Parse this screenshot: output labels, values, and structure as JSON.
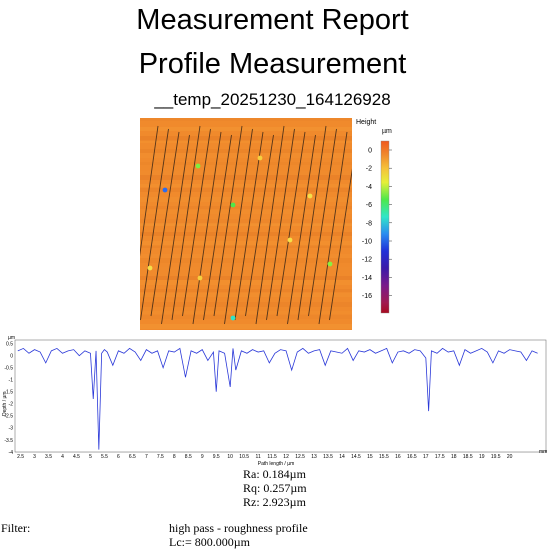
{
  "report": {
    "title": "Measurement Report",
    "subtitle": "Profile Measurement",
    "file_name": "__temp_20251230_164126928"
  },
  "height_map": {
    "colorbar_title": "Height",
    "colorbar_unit": "µm",
    "colorbar_ticks": [
      "0",
      "-2",
      "-4",
      "-6",
      "-8",
      "-10",
      "-12",
      "-14",
      "-16"
    ],
    "base_color": "#f08a2c",
    "line_color": "#3a2616"
  },
  "chart_data": {
    "type": "line",
    "ylabel": "Depth / µm",
    "yunit": "µm",
    "xlabel": "Path length / µm",
    "xunit": "mm",
    "xlim": [
      2.3,
      21.3
    ],
    "ylim": [
      -4,
      0.65
    ],
    "yticks": [
      0.5,
      0,
      -0.5,
      -1,
      -1.5,
      -2,
      -2.5,
      -3,
      -3.5,
      -4
    ],
    "ytick_labels": [
      "0.5",
      "0",
      "-0.5",
      "-1",
      "-1.5",
      "-2",
      "-2.5",
      "-3",
      "-3.5",
      "-4"
    ],
    "xticks": [
      2.5,
      3,
      3.5,
      4,
      4.5,
      5,
      5.5,
      6,
      6.5,
      7,
      7.5,
      8,
      8.5,
      9,
      9.5,
      10,
      10.5,
      11,
      11.5,
      12,
      12.5,
      13,
      13.5,
      14,
      14.5,
      15,
      15.5,
      16,
      16.5,
      17,
      17.5,
      18,
      18.5,
      19,
      19.5,
      20
    ],
    "xtick_labels": [
      "2.5",
      "3",
      "3.5",
      "4",
      "4.5",
      "5",
      "5.5",
      "6",
      "6.5",
      "7",
      "7.5",
      "8",
      "8.5",
      "9",
      "9.5",
      "10",
      "10.5",
      "11",
      "11.5",
      "12",
      "12.5",
      "13",
      "13.5",
      "14",
      "14.5",
      "15",
      "15.5",
      "16",
      "16.5",
      "17",
      "17.5",
      "18",
      "18.5",
      "19",
      "19.5",
      "20"
    ],
    "grid": true,
    "line_color": "#2a38d8",
    "series": [
      {
        "x": [
          2.4,
          2.6,
          2.8,
          3.0,
          3.2,
          3.4,
          3.6,
          3.8,
          4.0,
          4.2,
          4.4,
          4.6,
          4.8,
          5.0,
          5.1,
          5.2,
          5.3,
          5.4,
          5.5,
          5.6,
          5.8,
          6.0,
          6.2,
          6.4,
          6.6,
          6.8,
          7.0,
          7.2,
          7.4,
          7.6,
          7.8,
          8.0,
          8.2,
          8.4,
          8.6,
          8.8,
          9.0,
          9.2,
          9.4,
          9.5,
          9.6,
          9.8,
          10.0,
          10.1,
          10.2,
          10.4,
          10.6,
          10.8,
          11.0,
          11.2,
          11.4,
          11.6,
          11.8,
          12.0,
          12.2,
          12.4,
          12.6,
          12.8,
          13.0,
          13.2,
          13.4,
          13.6,
          13.8,
          14.0,
          14.2,
          14.4,
          14.6,
          14.8,
          15.0,
          15.2,
          15.4,
          15.6,
          15.8,
          16.0,
          16.2,
          16.4,
          16.6,
          16.8,
          17.0,
          17.1,
          17.2,
          17.4,
          17.6,
          17.8,
          18.0,
          18.2,
          18.4,
          18.6,
          18.8,
          19.0,
          19.2,
          19.4,
          19.6,
          19.8,
          20.0,
          20.2,
          20.4,
          20.6,
          20.8,
          21.0
        ],
        "y": [
          0.2,
          0.3,
          0.1,
          0.25,
          0.15,
          -0.3,
          0.2,
          0.3,
          0.1,
          0.2,
          0.25,
          0.0,
          0.2,
          0.1,
          -1.8,
          0.2,
          -3.9,
          0.1,
          0.25,
          0.15,
          -0.4,
          0.2,
          0.1,
          0.3,
          0.15,
          -0.2,
          0.25,
          0.1,
          0.2,
          -0.5,
          0.2,
          0.15,
          0.3,
          -0.9,
          0.2,
          0.1,
          0.25,
          -0.2,
          0.15,
          -1.5,
          0.2,
          0.1,
          -1.3,
          0.3,
          -0.6,
          0.2,
          0.1,
          0.25,
          0.15,
          0.2,
          -0.3,
          0.1,
          0.25,
          0.2,
          -0.6,
          0.15,
          0.3,
          0.1,
          0.2,
          0.25,
          -0.4,
          0.2,
          0.15,
          0.1,
          0.3,
          -0.2,
          0.2,
          0.15,
          0.25,
          0.1,
          0.2,
          0.3,
          -0.3,
          0.15,
          0.2,
          0.1,
          0.25,
          0.2,
          -0.1,
          -2.3,
          0.2,
          0.1,
          0.3,
          0.15,
          0.2,
          -0.4,
          0.25,
          0.1,
          0.2,
          0.3,
          0.15,
          -0.3,
          0.2,
          0.1,
          0.25,
          0.2,
          0.15,
          -0.2,
          0.2,
          0.1
        ]
      }
    ]
  },
  "stats": {
    "ra": "Ra: 0.184µm",
    "rq": "Rq: 0.257µm",
    "rz": "Rz: 2.923µm"
  },
  "filter": {
    "label": "Filter:",
    "value": "high pass - roughness profile",
    "lc": "Lc:= 800.000µm"
  }
}
